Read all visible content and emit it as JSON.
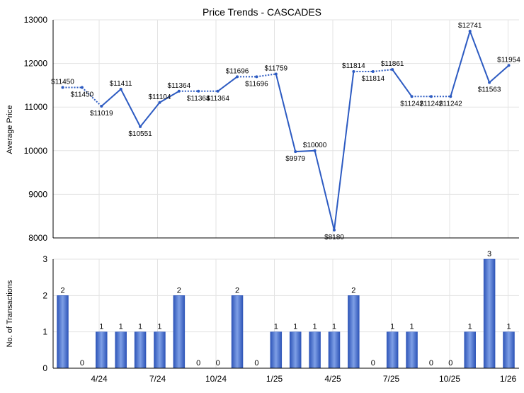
{
  "title": "Price Trends - CASCADES",
  "colors": {
    "title": "#3a6cc8",
    "line": "#2d5bc2",
    "bar_dark": "#2e55b8",
    "bar_light": "#7e9fe6",
    "grid": "#e3e3e3",
    "axis": "#000000"
  },
  "chart_data": [
    {
      "type": "line",
      "title": "Price Trends - CASCADES",
      "ylabel": "Average Price",
      "xlabel": "",
      "ylim": [
        8000,
        13000
      ],
      "yticks": [
        "8000",
        "9000",
        "10000",
        "11000",
        "12000",
        "13000"
      ],
      "xticks": [
        "4/24",
        "7/24",
        "10/24",
        "1/25",
        "4/25",
        "7/25",
        "10/25",
        "1/26"
      ],
      "grid": true,
      "series": [
        {
          "values": [
            11450,
            11450,
            11019,
            11411,
            10551,
            11104,
            11364,
            11364,
            11364,
            11696,
            11696,
            11759,
            9979,
            10000,
            8180,
            11814,
            11814,
            11861,
            11242,
            11242,
            11242,
            12741,
            11563,
            11954
          ],
          "labels": [
            "$11450",
            "$11450",
            "$11019",
            "$11411",
            "$10551",
            "$11104",
            "$11364",
            "$11364",
            "$11364",
            "$11696",
            "$11696",
            "$11759",
            "$9979",
            "$10000",
            "$8180",
            "$11814",
            "$11814",
            "$11861",
            "$11242",
            "$11242",
            "$11242",
            "$12741",
            "$11563",
            "$11954"
          ],
          "interpolated": [
            false,
            true,
            false,
            false,
            false,
            false,
            false,
            true,
            false,
            false,
            true,
            false,
            false,
            false,
            false,
            false,
            true,
            false,
            false,
            true,
            false,
            false,
            false,
            false
          ]
        }
      ]
    },
    {
      "type": "bar",
      "ylabel": "No. of Transactions",
      "xlabel": "",
      "ylim": [
        0,
        3
      ],
      "yticks": [
        "0",
        "1",
        "2",
        "3"
      ],
      "xticks": [
        "4/24",
        "7/24",
        "10/24",
        "1/25",
        "4/25",
        "7/25",
        "10/25",
        "1/26"
      ],
      "grid": true,
      "values": [
        2,
        0,
        1,
        1,
        1,
        1,
        2,
        0,
        0,
        2,
        0,
        1,
        1,
        1,
        1,
        2,
        0,
        1,
        1,
        0,
        0,
        1,
        3,
        1
      ]
    }
  ]
}
